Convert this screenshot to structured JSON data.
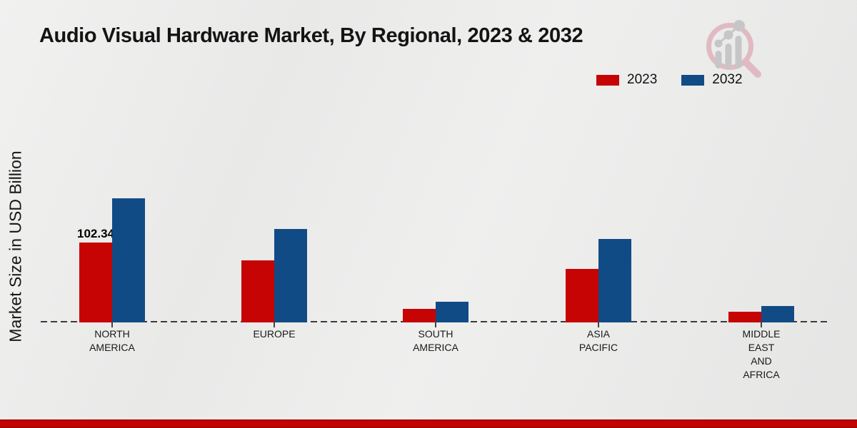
{
  "header": {
    "title": "Audio Visual Hardware Market, By Regional, 2023 & 2032"
  },
  "y_axis": {
    "label": "Market Size in USD Billion"
  },
  "legend": {
    "items": [
      {
        "label": "2023",
        "color": "#c50403"
      },
      {
        "label": "2032",
        "color": "#114b86"
      }
    ]
  },
  "logo": {
    "icon": "magnifier-bar-chart-logo",
    "circle_color": "#e0bac2",
    "bars_color": "#c6c6c8"
  },
  "accent": {
    "bottom_bar_color": "#c50302"
  },
  "chart_data": {
    "type": "bar",
    "title": "Audio Visual Hardware Market, By Regional, 2023 & 2032",
    "xlabel": "",
    "ylabel": "Market Size in USD Billion",
    "categories": [
      "NORTH AMERICA",
      "EUROPE",
      "SOUTH AMERICA",
      "ASIA PACIFIC",
      "MIDDLE EAST AND AFRICA"
    ],
    "category_label_lines": [
      [
        "NORTH",
        "AMERICA"
      ],
      [
        "EUROPE"
      ],
      [
        "SOUTH",
        "AMERICA"
      ],
      [
        "ASIA",
        "PACIFIC"
      ],
      [
        "MIDDLE",
        "EAST",
        "AND",
        "AFRICA"
      ]
    ],
    "series": [
      {
        "name": "2023",
        "color": "#c50403",
        "values": [
          102.34,
          79.5,
          17.5,
          68.5,
          13.7
        ],
        "data_labels": [
          "102.34",
          "",
          "",
          "",
          ""
        ]
      },
      {
        "name": "2032",
        "color": "#114b86",
        "values": [
          159,
          120,
          26.5,
          107,
          21
        ],
        "data_labels": [
          "",
          "",
          "",
          "",
          ""
        ]
      }
    ],
    "ylim": [
      0,
      170
    ],
    "grid": false,
    "legend_position": "top-right",
    "baseline_style": "dashed",
    "data_label_shown": "102.34"
  }
}
